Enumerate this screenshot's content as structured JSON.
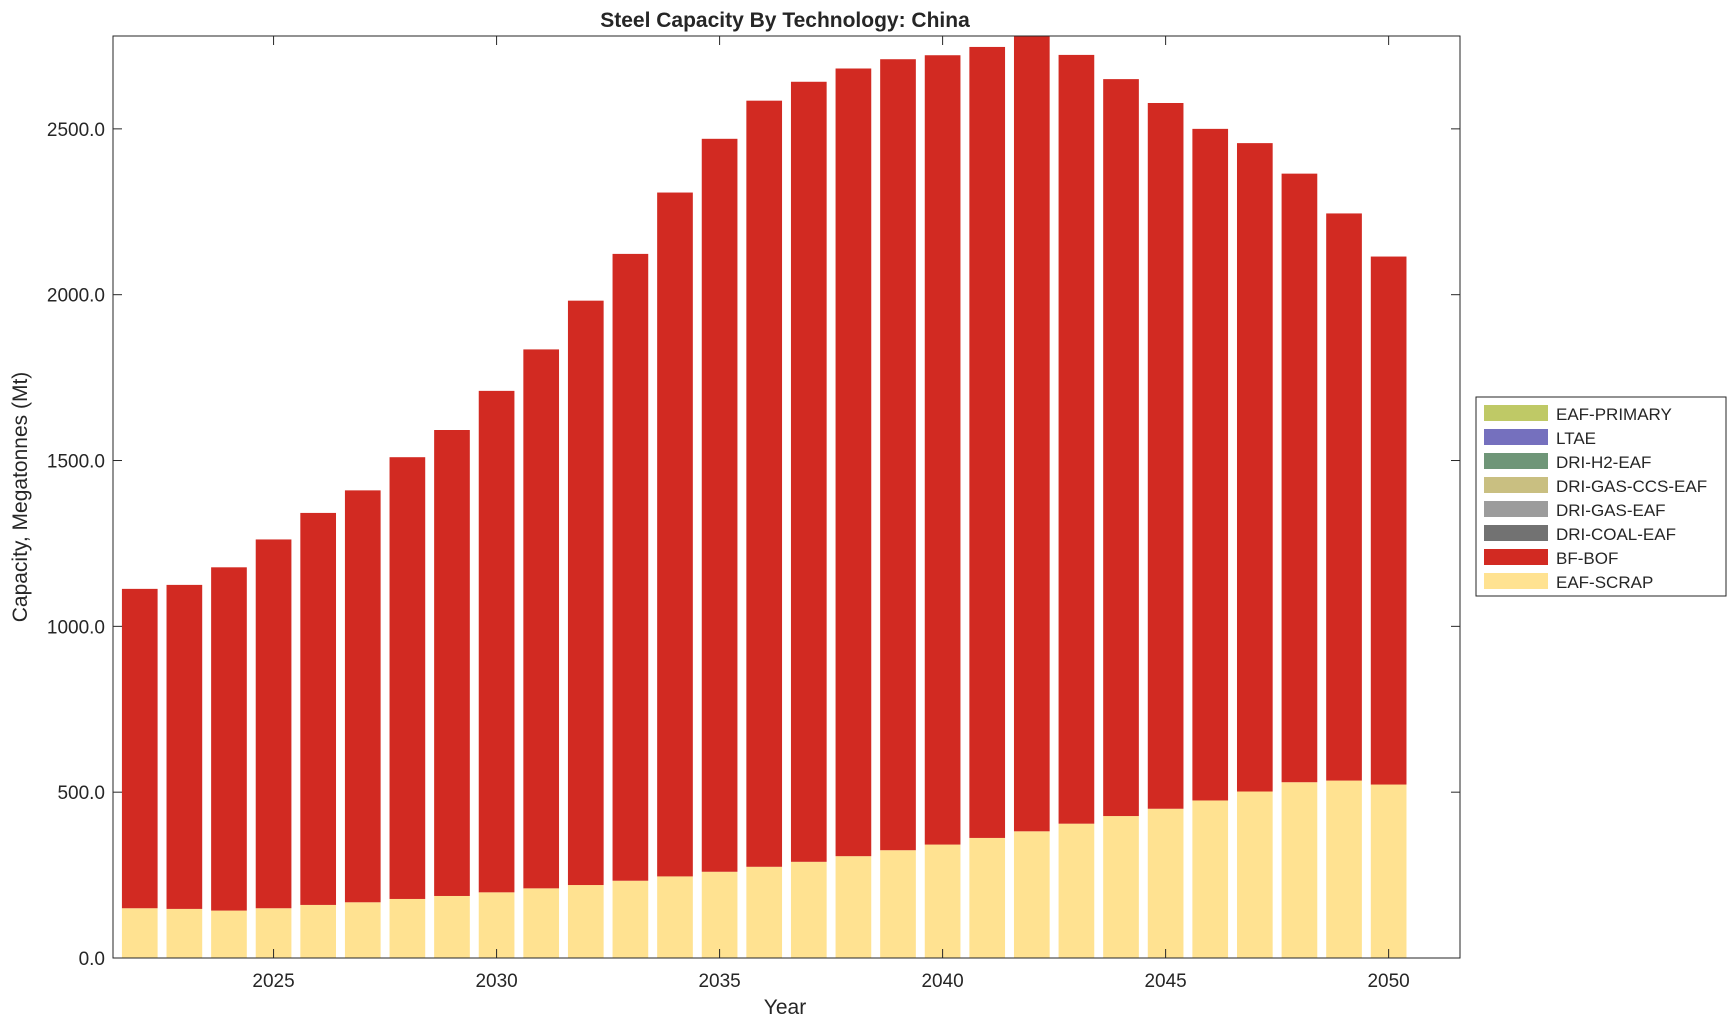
{
  "chart_data": {
    "type": "bar",
    "stacked": true,
    "title": "Steel Capacity By Technology: China",
    "xlabel": "Year",
    "ylabel": "Capacity, Megatonnes (Mt)",
    "xlim": [
      2021.4,
      2051.6
    ],
    "ylim": [
      0,
      2780
    ],
    "xticks": [
      2025,
      2030,
      2035,
      2040,
      2045,
      2050
    ],
    "xtick_labels": [
      "2025",
      "2030",
      "2035",
      "2040",
      "2045",
      "2050"
    ],
    "yticks": [
      0,
      500,
      1000,
      1500,
      2000,
      2500
    ],
    "ytick_labels": [
      "0.0",
      "500.0",
      "1000.0",
      "1500.0",
      "2000.0",
      "2500.0"
    ],
    "grid": false,
    "legend_position": "outside-right",
    "categories": [
      2022,
      2023,
      2024,
      2025,
      2026,
      2027,
      2028,
      2029,
      2030,
      2031,
      2032,
      2033,
      2034,
      2035,
      2036,
      2037,
      2038,
      2039,
      2040,
      2041,
      2042,
      2043,
      2044,
      2045,
      2046,
      2047,
      2048,
      2049,
      2050
    ],
    "series": [
      {
        "name": "EAF-SCRAP",
        "color": "#FFE291",
        "values": [
          150,
          148,
          143,
          150,
          160,
          168,
          178,
          187,
          198,
          210,
          220,
          233,
          246,
          260,
          275,
          290,
          307,
          325,
          342,
          362,
          382,
          405,
          428,
          450,
          475,
          502,
          530,
          535,
          523
        ]
      },
      {
        "name": "BF-BOF",
        "color": "#D22A22",
        "values": [
          963,
          977,
          1035,
          1112,
          1182,
          1242,
          1332,
          1405,
          1512,
          1625,
          1762,
          1890,
          2062,
          2210,
          2310,
          2352,
          2375,
          2385,
          2380,
          2385,
          2398,
          2318,
          2222,
          2128,
          2025,
          1955,
          1835,
          1710,
          1592
        ]
      },
      {
        "name": "DRI-COAL-EAF",
        "color": "#727272",
        "values": [
          0,
          0,
          0,
          0,
          0,
          0,
          0,
          0,
          0,
          0,
          0,
          0,
          0,
          0,
          0,
          0,
          0,
          0,
          0,
          0,
          0,
          0,
          0,
          0,
          0,
          0,
          0,
          0,
          0
        ]
      },
      {
        "name": "DRI-GAS-EAF",
        "color": "#9C9C9C",
        "values": [
          0,
          0,
          0,
          0,
          0,
          0,
          0,
          0,
          0,
          0,
          0,
          0,
          0,
          0,
          0,
          0,
          0,
          0,
          0,
          0,
          0,
          0,
          0,
          0,
          0,
          0,
          0,
          0,
          0
        ]
      },
      {
        "name": "DRI-GAS-CCS-EAF",
        "color": "#C9BF81",
        "values": [
          0,
          0,
          0,
          0,
          0,
          0,
          0,
          0,
          0,
          0,
          0,
          0,
          0,
          0,
          0,
          0,
          0,
          0,
          0,
          0,
          0,
          0,
          0,
          0,
          0,
          0,
          0,
          0,
          0
        ]
      },
      {
        "name": "DRI-H2-EAF",
        "color": "#6F9678",
        "values": [
          0,
          0,
          0,
          0,
          0,
          0,
          0,
          0,
          0,
          0,
          0,
          0,
          0,
          0,
          0,
          0,
          0,
          0,
          0,
          0,
          0,
          0,
          0,
          0,
          0,
          0,
          0,
          0,
          0
        ]
      },
      {
        "name": "LTAE",
        "color": "#7570BE",
        "values": [
          0,
          0,
          0,
          0,
          0,
          0,
          0,
          0,
          0,
          0,
          0,
          0,
          0,
          0,
          0,
          0,
          0,
          0,
          0,
          0,
          0,
          0,
          0,
          0,
          0,
          0,
          0,
          0,
          0
        ]
      },
      {
        "name": "EAF-PRIMARY",
        "color": "#BFC966",
        "values": [
          0,
          0,
          0,
          0,
          0,
          0,
          0,
          0,
          0,
          0,
          0,
          0,
          0,
          0,
          0,
          0,
          0,
          0,
          0,
          0,
          0,
          0,
          0,
          0,
          0,
          0,
          0,
          0,
          0
        ]
      }
    ],
    "legend_order": [
      "EAF-PRIMARY",
      "LTAE",
      "DRI-H2-EAF",
      "DRI-GAS-CCS-EAF",
      "DRI-GAS-EAF",
      "DRI-COAL-EAF",
      "BF-BOF",
      "EAF-SCRAP"
    ]
  }
}
